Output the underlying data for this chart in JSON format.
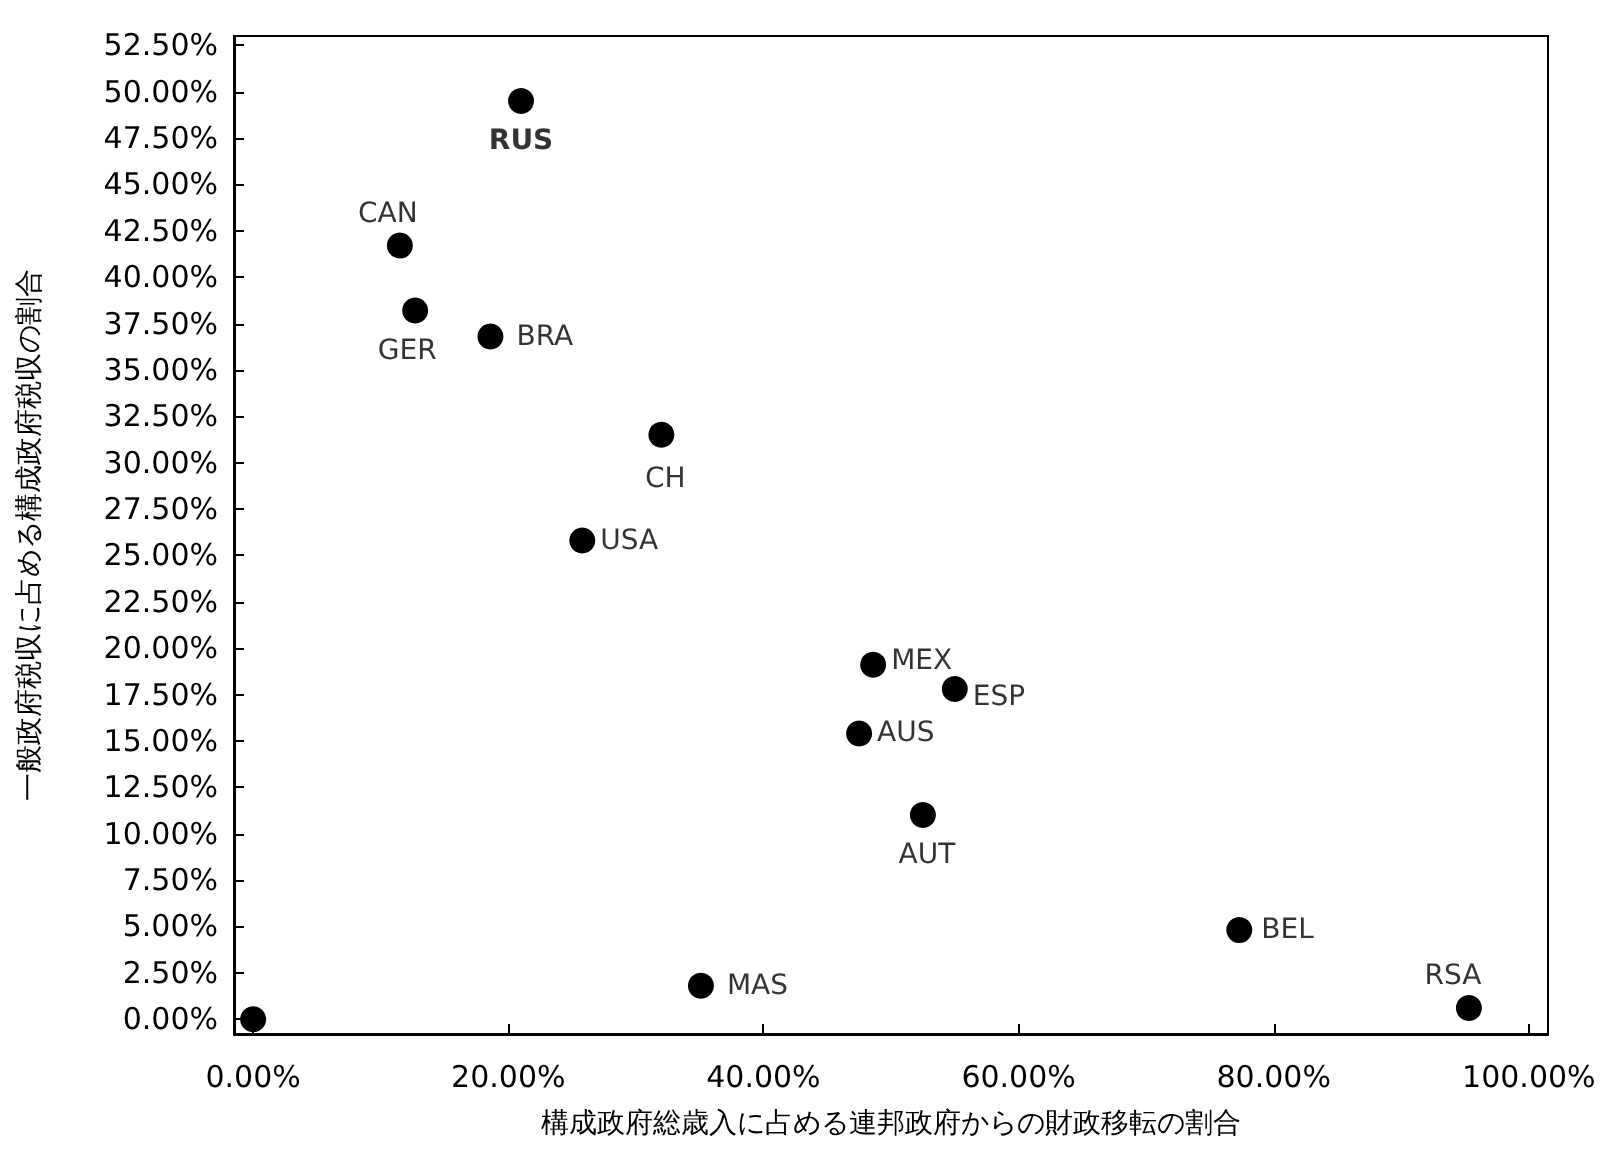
{
  "chart_data": {
    "type": "scatter",
    "xlabel": "構成政府総歳入に占める連邦政府からの財政移転の割合",
    "ylabel": "一般政府税収に占める構成政府税収の割合",
    "x": [
      0,
      21,
      11.5,
      12.7,
      18.6,
      32.0,
      25.8,
      48.6,
      55.0,
      47.5,
      52.5,
      77.3,
      95.3,
      35.1
    ],
    "series": [
      {
        "color": "#000000",
        "values": [
          0,
          49.5,
          41.7,
          38.2,
          36.8,
          31.5,
          25.8,
          19.1,
          17.8,
          15.4,
          11.0,
          4.8,
          0.6,
          1.8
        ]
      }
    ],
    "annotations": [
      {
        "text": "RUS",
        "x": 21,
        "y": 49.5
      },
      {
        "text": "CAN",
        "x": 11.5,
        "y": 41.7
      },
      {
        "text": "GER",
        "x": 12.7,
        "y": 38.2
      },
      {
        "text": "BRA",
        "x": 18.6,
        "y": 36.8
      },
      {
        "text": "CH",
        "x": 32.0,
        "y": 31.5
      },
      {
        "text": "USA",
        "x": 25.8,
        "y": 25.8
      },
      {
        "text": "MEX",
        "x": 48.6,
        "y": 19.1
      },
      {
        "text": "ESP",
        "x": 55.0,
        "y": 17.8
      },
      {
        "text": "AUS",
        "x": 47.5,
        "y": 15.4
      },
      {
        "text": "AUT",
        "x": 52.5,
        "y": 11.0
      },
      {
        "text": "BEL",
        "x": 77.3,
        "y": 4.8
      },
      {
        "text": "RSA",
        "x": 95.3,
        "y": 0.6
      },
      {
        "text": "MAS",
        "x": 35.1,
        "y": 1.8
      }
    ],
    "xlim": [
      -1.5,
      101.5
    ],
    "ylim": [
      -0.8,
      53
    ],
    "xticks": [
      {
        "value": 0,
        "label": "0.00%"
      },
      {
        "value": 20,
        "label": "20.00%"
      },
      {
        "value": 40,
        "label": "40.00%"
      },
      {
        "value": 60,
        "label": "60.00%"
      },
      {
        "value": 80,
        "label": "80.00%"
      },
      {
        "value": 100,
        "label": "100.00%"
      }
    ],
    "yticks": [
      {
        "value": 0,
        "label": "0.00%"
      },
      {
        "value": 2.5,
        "label": "2.50%"
      },
      {
        "value": 5,
        "label": "5.00%"
      },
      {
        "value": 7.5,
        "label": "7.50%"
      },
      {
        "value": 10,
        "label": "10.00%"
      },
      {
        "value": 12.5,
        "label": "12.50%"
      },
      {
        "value": 15,
        "label": "15.00%"
      },
      {
        "value": 17.5,
        "label": "17.50%"
      },
      {
        "value": 20,
        "label": "20.00%"
      },
      {
        "value": 22.5,
        "label": "22.50%"
      },
      {
        "value": 25,
        "label": "25.00%"
      },
      {
        "value": 27.5,
        "label": "27.50%"
      },
      {
        "value": 30,
        "label": "30.00%"
      },
      {
        "value": 32.5,
        "label": "32.50%"
      },
      {
        "value": 35,
        "label": "35.00%"
      },
      {
        "value": 37.5,
        "label": "37.50%"
      },
      {
        "value": 40,
        "label": "40.00%"
      },
      {
        "value": 42.5,
        "label": "42.50%"
      },
      {
        "value": 45,
        "label": "45.00%"
      },
      {
        "value": 47.5,
        "label": "47.50%"
      },
      {
        "value": 50,
        "label": "50.00%"
      },
      {
        "value": 52.5,
        "label": "52.50%"
      }
    ],
    "grid": false,
    "marker": "circle"
  }
}
